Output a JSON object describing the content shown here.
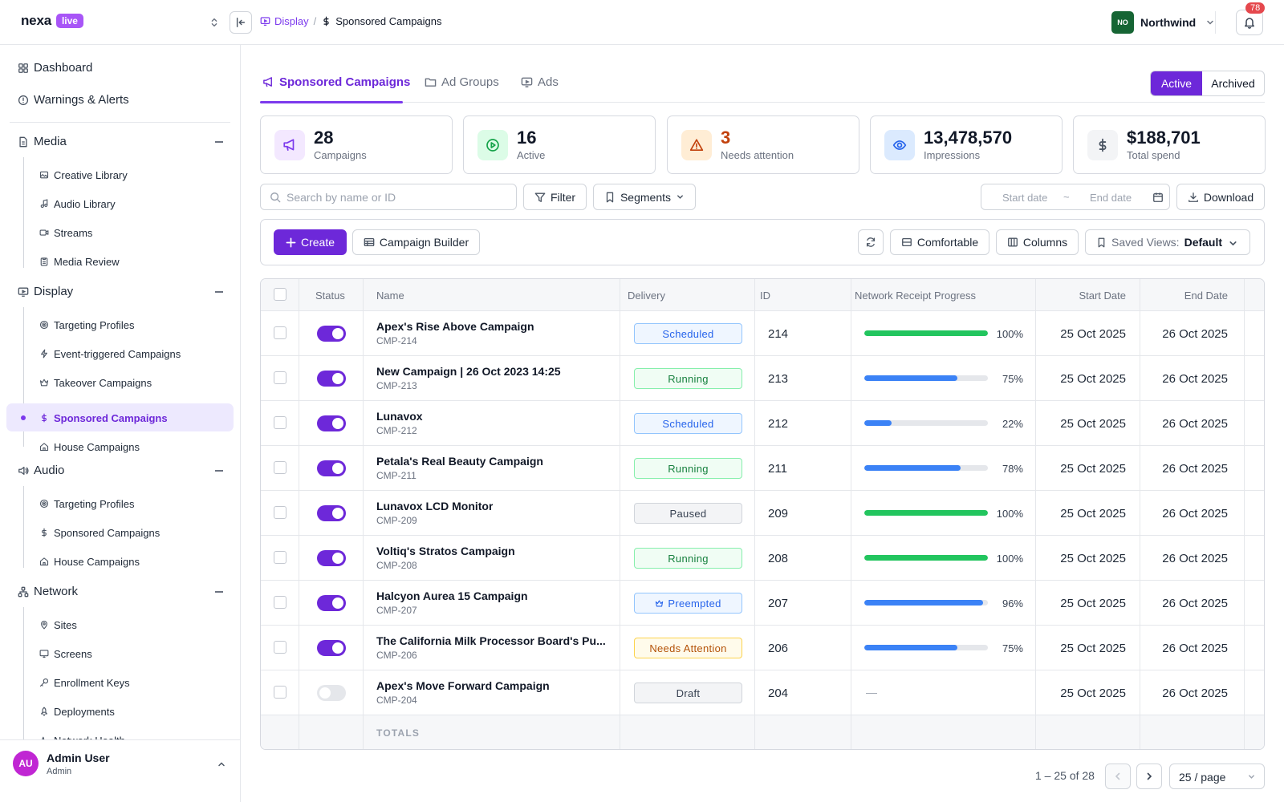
{
  "brand": {
    "name": "nexa",
    "badge": "live"
  },
  "breadcrumbs": [
    {
      "label": "Display",
      "icon": "display-icon"
    },
    {
      "label": "Sponsored Campaigns",
      "icon": "dollar-icon"
    }
  ],
  "breadcrumb_separator": "/",
  "org": {
    "initials": "NO",
    "name": "Northwind"
  },
  "notifications": {
    "count": "78"
  },
  "sidebar": {
    "top": [
      {
        "label": "Dashboard",
        "icon": "grid-icon"
      },
      {
        "label": "Warnings & Alerts",
        "icon": "alert-circle-icon"
      }
    ],
    "sections": [
      {
        "label": "Media",
        "icon": "document-icon",
        "items": [
          {
            "label": "Creative Library",
            "icon": "image-icon"
          },
          {
            "label": "Audio Library",
            "icon": "music-icon"
          },
          {
            "label": "Streams",
            "icon": "video-icon"
          },
          {
            "label": "Media Review",
            "icon": "clipboard-icon"
          }
        ]
      },
      {
        "label": "Display",
        "icon": "display-icon",
        "items": [
          {
            "label": "Targeting Profiles",
            "icon": "target-icon"
          },
          {
            "label": "Event-triggered Campaigns",
            "icon": "bolt-icon"
          },
          {
            "label": "Takeover Campaigns",
            "icon": "crown-icon"
          },
          {
            "label": "Sponsored Campaigns",
            "icon": "dollar-icon",
            "active": true
          },
          {
            "label": "House Campaigns",
            "icon": "home-icon"
          }
        ]
      },
      {
        "label": "Audio",
        "icon": "speaker-icon",
        "items": [
          {
            "label": "Targeting Profiles",
            "icon": "target-icon"
          },
          {
            "label": "Sponsored Campaigns",
            "icon": "dollar-icon"
          },
          {
            "label": "House Campaigns",
            "icon": "home-icon"
          }
        ]
      },
      {
        "label": "Network",
        "icon": "network-icon",
        "items": [
          {
            "label": "Sites",
            "icon": "map-pin-icon"
          },
          {
            "label": "Screens",
            "icon": "monitor-icon"
          },
          {
            "label": "Enrollment Keys",
            "icon": "key-icon"
          },
          {
            "label": "Deployments",
            "icon": "rocket-icon"
          },
          {
            "label": "Network Health",
            "icon": "activity-icon"
          }
        ]
      }
    ]
  },
  "user": {
    "initials": "AU",
    "name": "Admin User",
    "role": "Admin"
  },
  "tabs": [
    {
      "label": "Sponsored Campaigns",
      "icon": "megaphone-icon",
      "active": true
    },
    {
      "label": "Ad Groups",
      "icon": "folder-icon"
    },
    {
      "label": "Ads",
      "icon": "display-icon"
    }
  ],
  "segment": {
    "active": "Active",
    "archived": "Archived"
  },
  "kpis": [
    {
      "value": "28",
      "label": "Campaigns",
      "icon": "megaphone-icon",
      "color": "#7c3aed",
      "bg": "#f3e8ff"
    },
    {
      "value": "16",
      "label": "Active",
      "icon": "play-circle-icon",
      "color": "#16a34a",
      "bg": "#dcfce7"
    },
    {
      "value": "3",
      "label": "Needs attention",
      "icon": "warning-icon",
      "color": "#c2410c",
      "bg": "#ffedd5",
      "value_color": "#c2410c"
    },
    {
      "value": "13,478,570",
      "label": "Impressions",
      "icon": "eye-icon",
      "color": "#2563eb",
      "bg": "#dbeafe"
    },
    {
      "value": "$188,701",
      "label": "Total spend",
      "icon": "dollar-icon",
      "color": "#4b5563",
      "bg": "#f3f4f6"
    }
  ],
  "filters": {
    "search_placeholder": "Search by name or ID",
    "filter_label": "Filter",
    "segments_label": "Segments",
    "start_date_placeholder": "Start date",
    "date_separator": "~",
    "end_date_placeholder": "End date",
    "download_label": "Download"
  },
  "toolbar": {
    "create_label": "Create",
    "builder_label": "Campaign Builder",
    "density_label": "Comfortable",
    "columns_label": "Columns",
    "saved_views_label": "Saved Views:",
    "saved_views_value": "Default"
  },
  "table": {
    "headers": {
      "status": "Status",
      "name": "Name",
      "delivery": "Delivery",
      "id": "ID",
      "progress": "Network Receipt Progress",
      "start": "Start Date",
      "end": "End Date"
    },
    "rows": [
      {
        "enabled": true,
        "name": "Apex's Rise Above Campaign",
        "code": "CMP-214",
        "delivery": "Scheduled",
        "id": "214",
        "progress": 100,
        "progress_label": "100%",
        "start": "25 Oct 2025",
        "end": "26 Oct 2025"
      },
      {
        "enabled": true,
        "name": "New Campaign | 26 Oct 2023 14:25",
        "code": "CMP-213",
        "delivery": "Running",
        "id": "213",
        "progress": 75,
        "progress_label": "75%",
        "start": "25 Oct 2025",
        "end": "26 Oct 2025"
      },
      {
        "enabled": true,
        "name": "Lunavox",
        "code": "CMP-212",
        "delivery": "Scheduled",
        "id": "212",
        "progress": 22,
        "progress_label": "22%",
        "start": "25 Oct 2025",
        "end": "26 Oct 2025"
      },
      {
        "enabled": true,
        "name": "Petala's Real Beauty Campaign",
        "code": "CMP-211",
        "delivery": "Running",
        "id": "211",
        "progress": 78,
        "progress_label": "78%",
        "start": "25 Oct 2025",
        "end": "26 Oct 2025"
      },
      {
        "enabled": true,
        "name": "Lunavox LCD Monitor",
        "code": "CMP-209",
        "delivery": "Paused",
        "id": "209",
        "progress": 100,
        "progress_label": "100%",
        "start": "25 Oct 2025",
        "end": "26 Oct 2025"
      },
      {
        "enabled": true,
        "name": "Voltiq's Stratos Campaign",
        "code": "CMP-208",
        "delivery": "Running",
        "id": "208",
        "progress": 100,
        "progress_label": "100%",
        "start": "25 Oct 2025",
        "end": "26 Oct 2025"
      },
      {
        "enabled": true,
        "name": "Halcyon Aurea 15 Campaign",
        "code": "CMP-207",
        "delivery": "Preempted",
        "id": "207",
        "progress": 96,
        "progress_label": "96%",
        "start": "25 Oct 2025",
        "end": "26 Oct 2025"
      },
      {
        "enabled": true,
        "name": "The California Milk Processor Board's Pu...",
        "code": "CMP-206",
        "delivery": "Needs Attention",
        "id": "206",
        "progress": 75,
        "progress_label": "75%",
        "start": "25 Oct 2025",
        "end": "26 Oct 2025"
      },
      {
        "enabled": false,
        "name": "Apex's Move Forward Campaign",
        "code": "CMP-204",
        "delivery": "Draft",
        "id": "204",
        "progress": null,
        "progress_label": "—",
        "start": "25 Oct 2025",
        "end": "26 Oct 2025"
      }
    ],
    "totals_label": "TOTALS"
  },
  "delivery_styles": {
    "Scheduled": {
      "fg": "#2563eb",
      "bg": "#eff6ff",
      "border": "#93c5fd"
    },
    "Running": {
      "fg": "#15803d",
      "bg": "#f0fdf4",
      "border": "#86efac"
    },
    "Paused": {
      "fg": "#374151",
      "bg": "#f3f4f6",
      "border": "#d1d5db"
    },
    "Preempted": {
      "fg": "#2563eb",
      "bg": "#eff6ff",
      "border": "#93c5fd"
    },
    "Needs Attention": {
      "fg": "#b45309",
      "bg": "#fffbeb",
      "border": "#fcd34d"
    },
    "Draft": {
      "fg": "#374151",
      "bg": "#f3f4f6",
      "border": "#d1d5db"
    }
  },
  "colors": {
    "accent": "#6d28d9",
    "progress_complete": "#22c55e",
    "progress_partial": "#3b82f6"
  },
  "pagination": {
    "info": "1 – 25 of 28",
    "per_page": "25 / page"
  }
}
